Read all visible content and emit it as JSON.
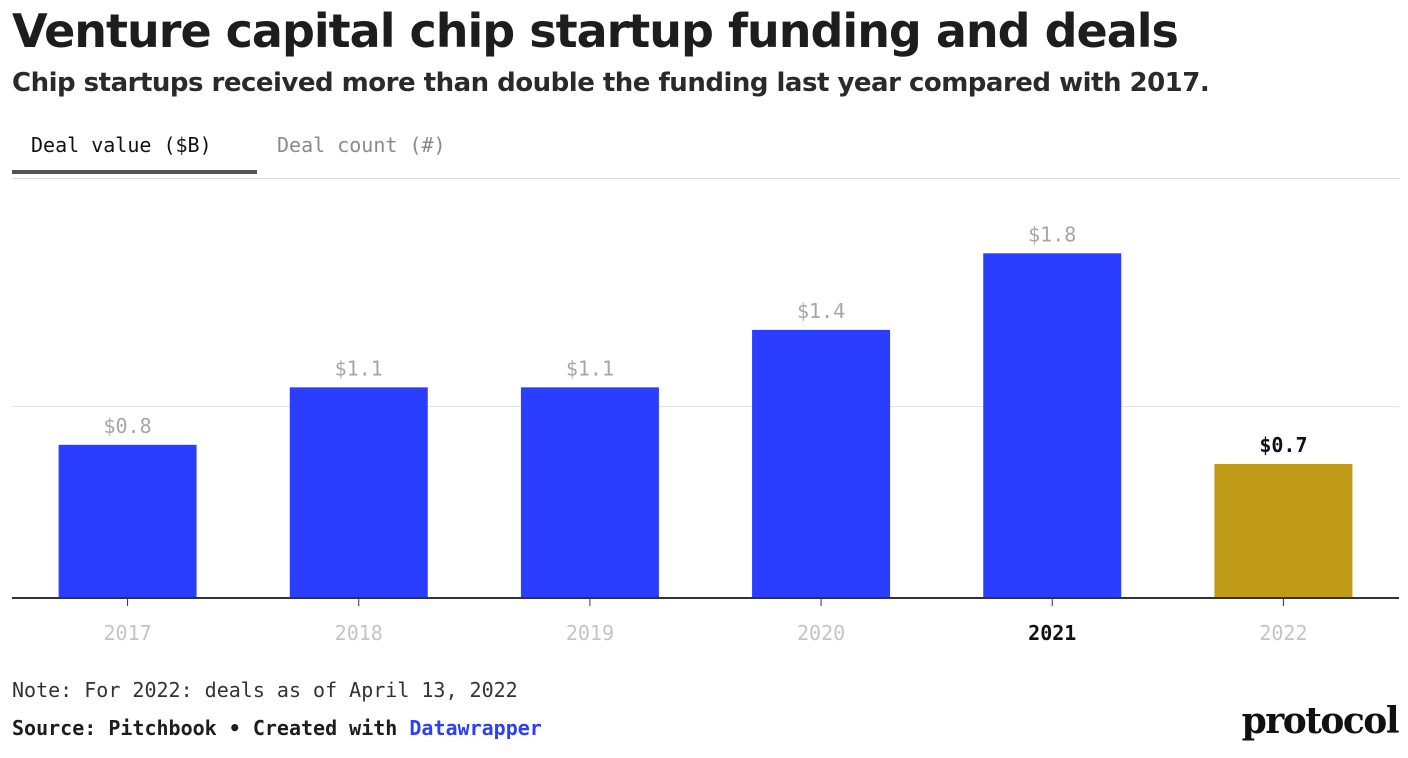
{
  "header": {
    "title": "Venture capital chip startup funding and deals",
    "subtitle": "Chip startups received more than double the funding last year compared with 2017."
  },
  "tabs": [
    {
      "label": "Deal value ($B)",
      "active": true
    },
    {
      "label": "Deal count (#)",
      "active": false
    }
  ],
  "chart_data": {
    "type": "bar",
    "categories": [
      "2017",
      "2018",
      "2019",
      "2020",
      "2021",
      "2022"
    ],
    "values": [
      0.8,
      1.1,
      1.1,
      1.4,
      1.8,
      0.7
    ],
    "value_labels": [
      "$0.8",
      "$1.1",
      "$1.1",
      "$1.4",
      "$1.8",
      "$0.7"
    ],
    "bar_colors": [
      "#2b3dff",
      "#2b3dff",
      "#2b3dff",
      "#2b3dff",
      "#2b3dff",
      "#bf9b17"
    ],
    "highlighted_value_label": "2022",
    "highlighted_tick_label": "2021",
    "ylim": [
      0,
      2
    ],
    "gridlines": [
      1
    ],
    "grid": true,
    "xlabel": "",
    "ylabel": ""
  },
  "footer": {
    "note": "Note: For 2022: deals as of April 13, 2022",
    "source_prefix": "Source: Pitchbook • Created with ",
    "source_link": "Datawrapper",
    "logo": "protocol"
  },
  "colors": {
    "bar_primary": "#2b3dff",
    "bar_highlight": "#bf9b17",
    "label_muted": "#a6a6a6",
    "label_strong": "#111111",
    "gridline": "#e3e3e3",
    "axis": "#333333"
  }
}
